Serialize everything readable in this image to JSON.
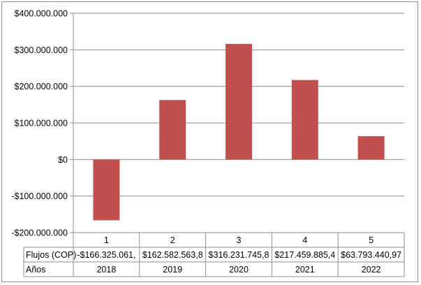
{
  "chart_data": {
    "type": "bar",
    "categories": [
      "1",
      "2",
      "3",
      "4",
      "5"
    ],
    "series": [
      {
        "name": "Flujos (COP)",
        "values": [
          -166325061,
          162582563.8,
          316231745.8,
          217459885.4,
          63793440.97
        ],
        "color": "#c0504d"
      }
    ],
    "ylim": [
      -200000000,
      400000000
    ],
    "y_ticks": [
      400000000,
      300000000,
      200000000,
      100000000,
      0,
      -100000000,
      -200000000
    ],
    "y_tick_labels": [
      "$400.000.000",
      "$300.000.000",
      "$200.000.000",
      "$100.000.000",
      "$0",
      "-$100.000.000",
      "-$200.000.000"
    ],
    "grid": true,
    "data_table": {
      "rows": [
        {
          "header": "Flujos (COP)",
          "cells": [
            "-$166.325.061,",
            "$162.582.563,8",
            "$316.231.745,8",
            "$217.459.885,4",
            "$63.793.440,97"
          ]
        },
        {
          "header": "Años",
          "cells": [
            "2018",
            "2019",
            "2020",
            "2021",
            "2022"
          ]
        }
      ]
    }
  }
}
